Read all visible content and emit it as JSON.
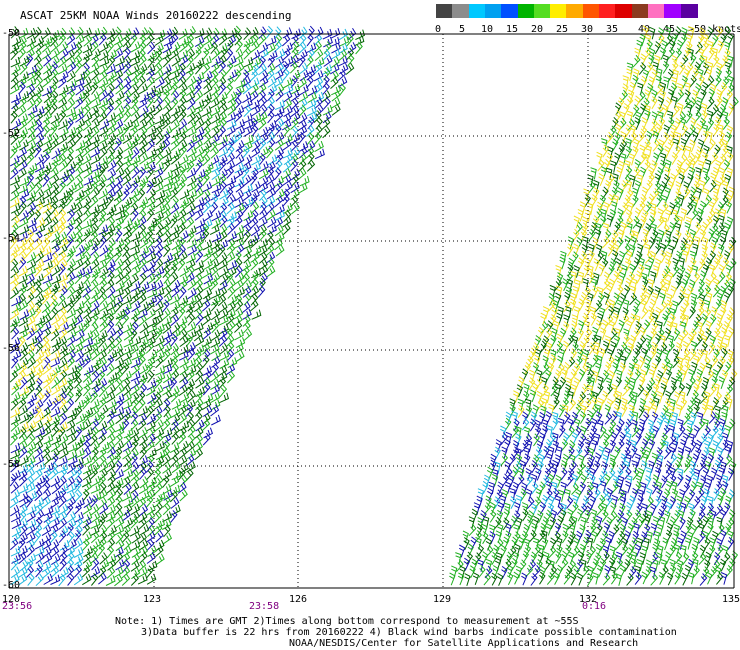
{
  "title": "ASCAT 25KM NOAA Winds 20160222 descending",
  "legend": {
    "colors": [
      "#444444",
      "#8c8c8c",
      "#00c8ff",
      "#00a0f0",
      "#0050ff",
      "#00b400",
      "#55dd22",
      "#ffee00",
      "#ffaa00",
      "#ff5500",
      "#ff2020",
      "#dd0000",
      "#8b3b20",
      "#ff70c0",
      "#a000ff",
      "#5a00a0"
    ],
    "labels": [
      "0",
      "5",
      "10",
      "15",
      "20",
      "25",
      "30",
      "35",
      "40",
      "45",
      ">50 knots"
    ]
  },
  "axes": {
    "lat_labels": [
      "-50",
      "-52",
      "-54",
      "-56",
      "-58",
      "-60"
    ],
    "lon_labels": [
      "120",
      "123",
      "126",
      "129",
      "132",
      "135"
    ]
  },
  "times": [
    "23:56",
    "23:58",
    "0:16"
  ],
  "notes": [
    "Note: 1) Times are GMT 2)Times along bottom correspond to measurement at ~55S",
    "3)Data buffer is 22 hrs from 20160222 4) Black wind barbs indicate possible contamination",
    "NOAA/NESDIS/Center for Satellite Applications and Research"
  ],
  "colors": {
    "blue_barb": "#1010b0",
    "cyan_barb": "#20b8e0",
    "green_barb": "#20b020",
    "darkgreen_barb": "#006400",
    "yellow_barb": "#f0e020",
    "time_label": "#800080"
  }
}
